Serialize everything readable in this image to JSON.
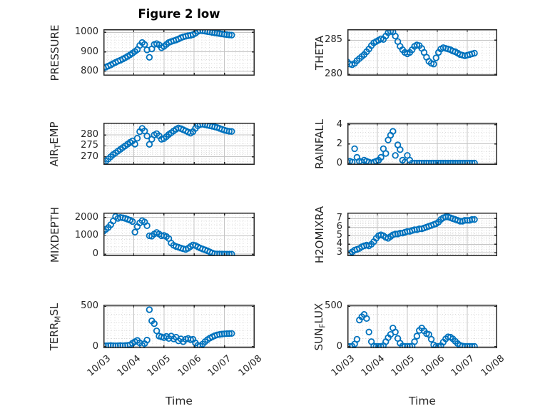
{
  "title": "Figure 2 low",
  "marker": {
    "shape": "open-circle",
    "color": "#0072BD"
  },
  "colors": {
    "marker": "#0072BD",
    "axis_box": "#262626",
    "grid_major": "#c4c4c4",
    "grid_minor": "#dadada",
    "text": "#262626",
    "background": "#ffffff"
  },
  "chart_data": {
    "type": "scatter",
    "xlabel": "Time",
    "x_tick_labels": [
      "10/03",
      "10/04",
      "10/05",
      "10/06",
      "10/07",
      "10/08"
    ],
    "xlim_days": [
      0,
      5
    ],
    "x_minor_per_day": 8,
    "shared_x_days": [
      0,
      0.08,
      0.16,
      0.24,
      0.32,
      0.4,
      0.48,
      0.56,
      0.64,
      0.72,
      0.8,
      0.88,
      0.96,
      1.04,
      1.12,
      1.2,
      1.28,
      1.36,
      1.44,
      1.52,
      1.6,
      1.68,
      1.76,
      1.84,
      1.92,
      2,
      2.08,
      2.16,
      2.24,
      2.32,
      2.4,
      2.48,
      2.56,
      2.64,
      2.72,
      2.8,
      2.88,
      2.96,
      3.04,
      3.12,
      3.2,
      3.28,
      3.36,
      3.44,
      3.52,
      3.6,
      3.68,
      3.76,
      3.84,
      3.92,
      4,
      4.08,
      4.16,
      4.24
    ],
    "charts": [
      {
        "name": "PRESSURE",
        "ylabel_parts": [
          {
            "text": "PRESSURE"
          }
        ],
        "yticks": [
          800,
          900,
          1000
        ],
        "ylim": [
          778,
          1016
        ],
        "y_minor_step": 20,
        "y": [
          818,
          822,
          827,
          833,
          840,
          846,
          852,
          857,
          863,
          870,
          877,
          885,
          893,
          902,
          912,
          933,
          948,
          938,
          910,
          872,
          915,
          938,
          942,
          936,
          921,
          928,
          938,
          948,
          953,
          957,
          961,
          966,
          972,
          977,
          980,
          983,
          985,
          988,
          995,
          1005,
          1009,
          1008,
          1006,
          1004,
          1002,
          1000,
          998,
          996,
          994,
          992,
          990,
          988,
          987,
          986
        ]
      },
      {
        "name": "THETA",
        "ylabel_parts": [
          {
            "text": "THETA"
          }
        ],
        "yticks": [
          280,
          285
        ],
        "ylim": [
          279.8,
          286.6
        ],
        "y_minor_step": 1,
        "y": [
          281.8,
          281.5,
          281.4,
          281.6,
          282,
          282.3,
          282.6,
          282.9,
          283.3,
          283.7,
          284.2,
          284.6,
          284.8,
          285,
          285.2,
          285.1,
          285.6,
          286.1,
          286.3,
          286.2,
          285.6,
          284.8,
          284.1,
          283.6,
          283.2,
          283,
          283.2,
          283.6,
          284.1,
          284.3,
          284.2,
          283.8,
          283.2,
          282.5,
          281.9,
          281.6,
          281.5,
          282.4,
          283.2,
          283.7,
          283.9,
          283.8,
          283.7,
          283.6,
          283.4,
          283.3,
          283.1,
          282.9,
          282.8,
          282.7,
          282.8,
          282.9,
          283,
          283.1
        ]
      },
      {
        "name": "AIR_TEMP",
        "ylabel_parts": [
          {
            "text": "AIR"
          },
          {
            "text": "T",
            "sub": true
          },
          {
            "text": "EMP"
          }
        ],
        "yticks": [
          270,
          275,
          280
        ],
        "ylim": [
          266.3,
          285.6
        ],
        "y_minor_step": 1,
        "y": [
          267,
          268,
          269,
          270,
          271,
          271.8,
          272.6,
          273.4,
          274.2,
          275,
          275.8,
          276.6,
          277.3,
          275.8,
          278.5,
          281.5,
          283,
          281.8,
          279.5,
          275.7,
          278,
          280,
          280.6,
          279.6,
          278,
          278.3,
          279.2,
          280.2,
          281,
          281.8,
          282.6,
          283.2,
          282.9,
          282.4,
          281.9,
          281.3,
          280.8,
          281.5,
          283,
          284.2,
          284.8,
          284.9,
          284.7,
          284.5,
          284.2,
          284,
          283.7,
          283.4,
          283,
          282.6,
          282.2,
          281.9,
          281.7,
          281.6
        ]
      },
      {
        "name": "RAINFALL",
        "ylabel_parts": [
          {
            "text": "RAINFALL"
          }
        ],
        "yticks": [
          0,
          2,
          4
        ],
        "ylim": [
          -0.18,
          4.2
        ],
        "y_minor_step": 0.4,
        "y": [
          0.1,
          0.2,
          0.1,
          1.5,
          0.6,
          0.2,
          0.1,
          0.3,
          0.2,
          0.1,
          0,
          0.1,
          0.2,
          0.3,
          0.6,
          1.5,
          1,
          2.4,
          2.9,
          3.3,
          0.8,
          1.9,
          1.4,
          0.3,
          0.1,
          0.8,
          0.3,
          0,
          0,
          0,
          0,
          0,
          0,
          0,
          0,
          0,
          0,
          0,
          0,
          0,
          0,
          0,
          0,
          0,
          0,
          0,
          0,
          0,
          0,
          0,
          0,
          0,
          0,
          0
        ]
      },
      {
        "name": "MIXDEPTH",
        "ylabel_parts": [
          {
            "text": "MIXDEPTH"
          }
        ],
        "yticks": [
          0,
          1000,
          2000
        ],
        "ylim": [
          -110,
          2260
        ],
        "y_minor_step": 200,
        "y": [
          1250,
          1350,
          1450,
          1600,
          1800,
          2050,
          1950,
          2000,
          1980,
          1950,
          1900,
          1850,
          1780,
          1200,
          1500,
          1700,
          1820,
          1750,
          1550,
          1000,
          980,
          1100,
          1180,
          1100,
          1000,
          1020,
          960,
          850,
          600,
          480,
          420,
          380,
          330,
          290,
          260,
          320,
          420,
          500,
          470,
          400,
          330,
          280,
          230,
          180,
          120,
          60,
          20,
          10,
          5,
          3,
          2,
          0,
          0,
          0
        ]
      },
      {
        "name": "H2OMIXRA",
        "ylabel_parts": [
          {
            "text": "H2OMIXRA"
          }
        ],
        "yticks": [
          3,
          4,
          5,
          6,
          7
        ],
        "ylim": [
          2.6,
          7.7
        ],
        "y_minor_step": 0.2,
        "y": [
          2.8,
          2.9,
          3.1,
          3.3,
          3.4,
          3.5,
          3.7,
          3.8,
          3.9,
          3.8,
          4,
          4.3,
          4.7,
          5,
          5.1,
          5,
          4.8,
          4.7,
          4.9,
          5.1,
          5.2,
          5.2,
          5.3,
          5.3,
          5.4,
          5.5,
          5.5,
          5.6,
          5.7,
          5.7,
          5.8,
          5.8,
          5.9,
          6,
          6.1,
          6.2,
          6.3,
          6.4,
          6.6,
          6.9,
          7.1,
          7.2,
          7.2,
          7.1,
          7,
          6.9,
          6.8,
          6.7,
          6.7,
          6.8,
          6.8,
          6.8,
          6.9,
          6.9
        ]
      },
      {
        "name": "TERR_MSL",
        "ylabel_parts": [
          {
            "text": "TERR"
          },
          {
            "text": "M",
            "sub": true
          },
          {
            "text": "SL"
          }
        ],
        "yticks": [
          0,
          500
        ],
        "ylim": [
          -22,
          522
        ],
        "y_minor_step": 100,
        "y": [
          10,
          8,
          10,
          12,
          10,
          8,
          10,
          12,
          10,
          12,
          15,
          20,
          40,
          60,
          75,
          45,
          15,
          35,
          80,
          460,
          320,
          285,
          195,
          130,
          120,
          110,
          125,
          100,
          130,
          95,
          115,
          70,
          95,
          60,
          90,
          100,
          85,
          90,
          45,
          15,
          5,
          30,
          60,
          85,
          105,
          120,
          135,
          145,
          150,
          155,
          158,
          160,
          162,
          163
        ]
      },
      {
        "name": "SUN_FLUX",
        "ylabel_parts": [
          {
            "text": "SUN"
          },
          {
            "text": "F",
            "sub": true
          },
          {
            "text": "LUX"
          }
        ],
        "yticks": [
          0,
          500
        ],
        "ylim": [
          -22,
          522
        ],
        "y_minor_step": 100,
        "y": [
          0,
          0,
          2,
          30,
          90,
          330,
          370,
          400,
          350,
          180,
          60,
          5,
          0,
          0,
          0,
          10,
          60,
          110,
          150,
          230,
          180,
          100,
          40,
          5,
          0,
          0,
          0,
          5,
          60,
          130,
          200,
          230,
          195,
          160,
          150,
          90,
          20,
          0,
          0,
          10,
          55,
          95,
          120,
          115,
          95,
          65,
          35,
          15,
          5,
          0,
          0,
          0,
          0,
          0
        ]
      }
    ]
  }
}
